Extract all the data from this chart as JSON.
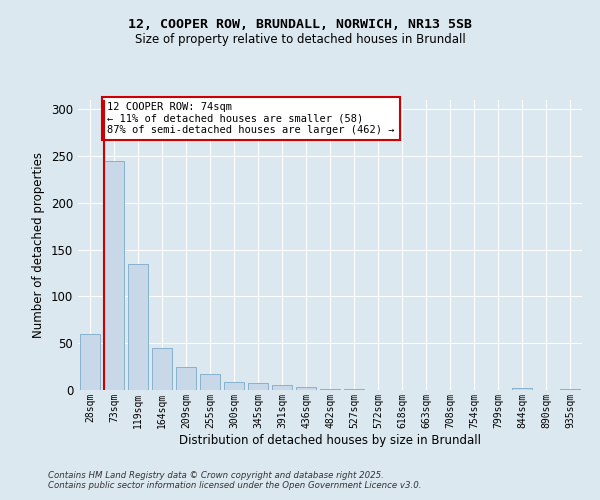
{
  "title_line1": "12, COOPER ROW, BRUNDALL, NORWICH, NR13 5SB",
  "title_line2": "Size of property relative to detached houses in Brundall",
  "xlabel": "Distribution of detached houses by size in Brundall",
  "ylabel": "Number of detached properties",
  "categories": [
    "28sqm",
    "73sqm",
    "119sqm",
    "164sqm",
    "209sqm",
    "255sqm",
    "300sqm",
    "345sqm",
    "391sqm",
    "436sqm",
    "482sqm",
    "527sqm",
    "572sqm",
    "618sqm",
    "663sqm",
    "708sqm",
    "754sqm",
    "799sqm",
    "844sqm",
    "890sqm",
    "935sqm"
  ],
  "values": [
    60,
    245,
    135,
    45,
    25,
    17,
    9,
    8,
    5,
    3,
    1,
    1,
    0,
    0,
    0,
    0,
    0,
    0,
    2,
    0,
    1
  ],
  "bar_color": "#c8d8e8",
  "bar_edgecolor": "#7aaac8",
  "red_line_x": 1,
  "ylim": [
    0,
    310
  ],
  "yticks": [
    0,
    50,
    100,
    150,
    200,
    250,
    300
  ],
  "annotation_title": "12 COOPER ROW: 74sqm",
  "annotation_line2": "← 11% of detached houses are smaller (58)",
  "annotation_line3": "87% of semi-detached houses are larger (462) →",
  "annotation_box_facecolor": "#ffffff",
  "annotation_box_edgecolor": "#cc0000",
  "footer_line1": "Contains HM Land Registry data © Crown copyright and database right 2025.",
  "footer_line2": "Contains public sector information licensed under the Open Government Licence v3.0.",
  "background_color": "#dce8f0",
  "plot_bg_color": "#dce8f0",
  "grid_color": "#ffffff"
}
